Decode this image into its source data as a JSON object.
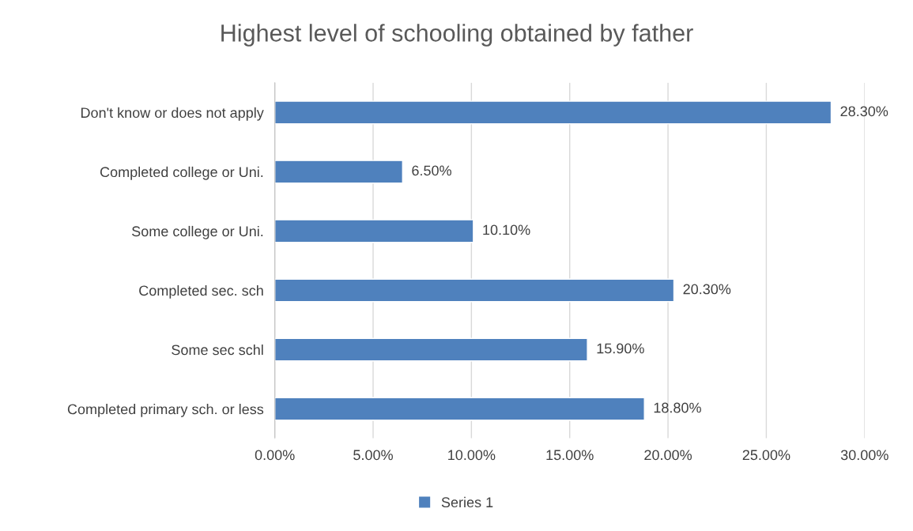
{
  "chart_data": {
    "type": "bar",
    "orientation": "horizontal",
    "title": "Highest level of schooling obtained by father",
    "categories": [
      "Don't know or does not apply",
      "Completed college or Uni.",
      "Some college or Uni.",
      "Completed sec. sch",
      "Some sec schl",
      "Completed primary sch. or less"
    ],
    "series": [
      {
        "name": "Series 1",
        "color": "#4f81bd",
        "values": [
          28.3,
          6.5,
          10.1,
          20.3,
          15.9,
          18.8
        ],
        "value_labels": [
          "28.30%",
          "6.50%",
          "10.10%",
          "20.30%",
          "15.90%",
          "18.80%"
        ]
      }
    ],
    "xlim": [
      0,
      30
    ],
    "xticks": [
      {
        "value": 0,
        "label": "0.00%"
      },
      {
        "value": 5,
        "label": "5.00%"
      },
      {
        "value": 10,
        "label": "10.00%"
      },
      {
        "value": 15,
        "label": "15.00%"
      },
      {
        "value": 20,
        "label": "20.00%"
      },
      {
        "value": 25,
        "label": "25.00%"
      },
      {
        "value": 30,
        "label": "30.00%"
      }
    ],
    "grid": "x",
    "legend": "bottom"
  }
}
